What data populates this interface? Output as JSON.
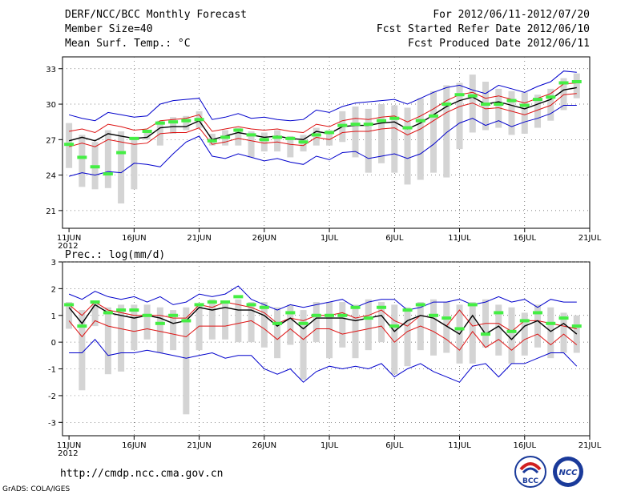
{
  "header": {
    "title": "DERF/NCC/BCC Monthly Forecast",
    "member_size": "Member Size=40",
    "variable_top": "Mean Surf. Temp.: °C",
    "period": "For 2012/06/11-2012/07/20",
    "start_date": "Fcst Started Refer Date 2012/06/10",
    "produced_date": "Fcst Produced Date 2012/06/11"
  },
  "footer": {
    "url": "http://cmdp.ncc.cma.gov.cn",
    "grads": "GrADS: COLA/IGES"
  },
  "logos": {
    "bcc": "BCC",
    "ncc": "NCC"
  },
  "colors": {
    "box": "#d4d4d4",
    "median": "#44ee44",
    "mean": "#000000",
    "pct": "#dd1111",
    "extreme": "#0000cc"
  },
  "chart_data": [
    {
      "type": "line",
      "title": "Mean Surf. Temp.: °C",
      "xlabel": "",
      "ylabel": "",
      "ylim": [
        19.5,
        34
      ],
      "yticks": [
        21,
        24,
        27,
        30,
        33
      ],
      "xlim": [
        0,
        40
      ],
      "x_ticks": [
        {
          "day": 0,
          "label": "11JUN"
        },
        {
          "day": 5,
          "label": "16JUN"
        },
        {
          "day": 10,
          "label": "21JUN"
        },
        {
          "day": 15,
          "label": "26JUN"
        },
        {
          "day": 20,
          "label": "1JUL"
        },
        {
          "day": 25,
          "label": "6JUL"
        },
        {
          "day": 30,
          "label": "11JUL"
        },
        {
          "day": 35,
          "label": "16JUL"
        },
        {
          "day": 40,
          "label": "21JUL"
        }
      ],
      "year_label": "2012",
      "x": [
        0,
        1,
        2,
        3,
        4,
        5,
        6,
        7,
        8,
        9,
        10,
        11,
        12,
        13,
        14,
        15,
        16,
        17,
        18,
        19,
        20,
        21,
        22,
        23,
        24,
        25,
        26,
        27,
        28,
        29,
        30,
        31,
        32,
        33,
        34,
        35,
        36,
        37,
        38,
        39
      ],
      "series": [
        {
          "name": "max",
          "color": "#0000cc",
          "values": [
            29.1,
            28.8,
            28.6,
            29.3,
            29.1,
            28.9,
            29.0,
            30.0,
            30.3,
            30.4,
            30.5,
            28.7,
            28.9,
            29.2,
            28.8,
            28.9,
            28.7,
            28.6,
            28.7,
            29.5,
            29.3,
            29.8,
            30.1,
            30.2,
            30.3,
            30.4,
            30.0,
            30.5,
            31.0,
            31.4,
            31.6,
            31.2,
            30.9,
            31.6,
            31.3,
            31.0,
            31.5,
            31.9,
            32.8,
            32.7
          ]
        },
        {
          "name": "upper",
          "color": "#dd1111",
          "values": [
            27.7,
            27.9,
            27.6,
            28.3,
            28.1,
            27.8,
            27.9,
            28.6,
            28.7,
            28.8,
            29.1,
            27.7,
            27.9,
            28.1,
            27.9,
            27.8,
            27.9,
            27.7,
            27.6,
            28.3,
            28.1,
            28.6,
            28.8,
            28.7,
            28.9,
            29.0,
            28.5,
            29.0,
            29.6,
            30.3,
            30.8,
            31.0,
            30.5,
            30.7,
            30.4,
            30.1,
            30.5,
            30.9,
            31.7,
            31.8
          ]
        },
        {
          "name": "mean",
          "color": "#000000",
          "values": [
            26.9,
            27.2,
            26.9,
            27.5,
            27.3,
            27.1,
            27.2,
            28.0,
            28.1,
            28.1,
            28.6,
            27.0,
            27.3,
            27.6,
            27.4,
            27.2,
            27.3,
            27.1,
            27.0,
            27.7,
            27.5,
            28.1,
            28.2,
            28.2,
            28.4,
            28.5,
            27.9,
            28.4,
            29.1,
            29.8,
            30.3,
            30.6,
            30.0,
            30.2,
            29.9,
            29.6,
            30.0,
            30.4,
            31.2,
            31.4
          ]
        },
        {
          "name": "lower",
          "color": "#dd1111",
          "values": [
            26.4,
            26.7,
            26.4,
            27.0,
            26.8,
            26.6,
            26.7,
            27.5,
            27.6,
            27.6,
            28.0,
            26.6,
            26.8,
            27.1,
            26.9,
            26.7,
            26.8,
            26.6,
            26.5,
            27.2,
            27.0,
            27.6,
            27.7,
            27.7,
            27.9,
            28.0,
            27.4,
            27.9,
            28.6,
            29.3,
            29.8,
            30.1,
            29.6,
            29.7,
            29.4,
            29.1,
            29.5,
            29.9,
            30.8,
            30.9
          ]
        },
        {
          "name": "min",
          "color": "#0000cc",
          "values": [
            23.9,
            24.2,
            24.0,
            24.3,
            24.2,
            25.0,
            24.9,
            24.7,
            25.8,
            26.8,
            27.3,
            25.6,
            25.4,
            25.8,
            25.5,
            25.2,
            25.4,
            25.1,
            24.9,
            25.6,
            25.3,
            25.9,
            26.0,
            25.4,
            25.6,
            25.8,
            25.4,
            25.8,
            26.6,
            27.6,
            28.4,
            28.8,
            28.2,
            28.6,
            28.1,
            28.5,
            28.8,
            29.2,
            29.9,
            29.9
          ]
        }
      ],
      "boxes": {
        "low": [
          24.6,
          23.0,
          22.8,
          22.9,
          21.6,
          22.8,
          27.0,
          26.5,
          27.5,
          27.8,
          28.0,
          26.5,
          26.5,
          26.5,
          25.5,
          26.0,
          26.0,
          25.5,
          26.0,
          26.5,
          26.5,
          26.8,
          25.5,
          24.2,
          25.0,
          24.2,
          23.2,
          23.6,
          24.2,
          23.8,
          26.2,
          27.6,
          27.8,
          28.0,
          27.4,
          27.5,
          28.0,
          28.6,
          29.5,
          30.5
        ],
        "high": [
          28.4,
          27.4,
          26.8,
          27.8,
          27.7,
          27.2,
          27.8,
          28.6,
          28.9,
          29.0,
          29.4,
          27.5,
          27.8,
          28.0,
          27.7,
          27.6,
          27.8,
          27.3,
          27.4,
          28.0,
          27.8,
          29.4,
          29.8,
          29.6,
          30.0,
          29.9,
          29.7,
          30.5,
          31.1,
          31.6,
          31.8,
          32.5,
          31.9,
          31.3,
          31.1,
          31.0,
          30.8,
          31.3,
          32.2,
          32.6
        ],
        "median": [
          26.6,
          25.5,
          24.7,
          24.1,
          25.9,
          27.1,
          27.7,
          28.4,
          28.5,
          28.6,
          28.7,
          26.9,
          27.2,
          27.8,
          27.4,
          27.0,
          27.2,
          27.1,
          26.8,
          27.4,
          27.6,
          28.2,
          28.3,
          28.3,
          28.6,
          28.8,
          28.0,
          28.6,
          29.0,
          30.0,
          30.8,
          30.7,
          30.0,
          30.0,
          30.3,
          29.9,
          30.4,
          30.6,
          31.8,
          31.9
        ]
      }
    },
    {
      "type": "line",
      "title": "Prec.: log(mm/d)",
      "xlabel": "",
      "ylabel": "",
      "ylim": [
        -3.5,
        3
      ],
      "yticks": [
        -3,
        -2,
        -1,
        0,
        1,
        2,
        3
      ],
      "xlim": [
        0,
        40
      ],
      "x_ticks": [
        {
          "day": 0,
          "label": "11JUN"
        },
        {
          "day": 5,
          "label": "16JUN"
        },
        {
          "day": 10,
          "label": "21JUN"
        },
        {
          "day": 15,
          "label": "26JUN"
        },
        {
          "day": 20,
          "label": "1JUL"
        },
        {
          "day": 25,
          "label": "6JUL"
        },
        {
          "day": 30,
          "label": "11JUL"
        },
        {
          "day": 35,
          "label": "16JUL"
        },
        {
          "day": 40,
          "label": "21JUL"
        }
      ],
      "year_label": "2012",
      "x": [
        0,
        1,
        2,
        3,
        4,
        5,
        6,
        7,
        8,
        9,
        10,
        11,
        12,
        13,
        14,
        15,
        16,
        17,
        18,
        19,
        20,
        21,
        22,
        23,
        24,
        25,
        26,
        27,
        28,
        29,
        30,
        31,
        32,
        33,
        34,
        35,
        36,
        37,
        38,
        39
      ],
      "series": [
        {
          "name": "max",
          "color": "#0000cc",
          "values": [
            1.8,
            1.6,
            1.9,
            1.7,
            1.6,
            1.7,
            1.5,
            1.7,
            1.4,
            1.5,
            1.8,
            1.7,
            1.8,
            2.1,
            1.6,
            1.4,
            1.2,
            1.4,
            1.3,
            1.4,
            1.5,
            1.6,
            1.3,
            1.5,
            1.6,
            1.6,
            1.2,
            1.3,
            1.5,
            1.5,
            1.6,
            1.4,
            1.5,
            1.7,
            1.5,
            1.6,
            1.3,
            1.6,
            1.5,
            1.5
          ]
        },
        {
          "name": "upper",
          "color": "#dd1111",
          "values": [
            1.4,
            1.0,
            1.5,
            1.2,
            1.1,
            1.0,
            1.0,
            1.0,
            0.9,
            0.9,
            1.4,
            1.3,
            1.5,
            1.4,
            1.3,
            1.1,
            0.7,
            0.9,
            0.8,
            1.0,
            1.0,
            1.1,
            0.9,
            1.0,
            1.2,
            0.8,
            0.6,
            1.0,
            0.9,
            0.6,
            1.2,
            0.6,
            0.7,
            0.7,
            0.4,
            0.8,
            0.8,
            0.7,
            0.6,
            0.5
          ]
        },
        {
          "name": "mean",
          "color": "#000000",
          "values": [
            1.3,
            0.7,
            1.4,
            1.1,
            1.0,
            0.9,
            1.0,
            0.9,
            0.7,
            0.8,
            1.3,
            1.2,
            1.3,
            1.2,
            1.2,
            1.0,
            0.6,
            0.9,
            0.5,
            0.9,
            0.9,
            0.9,
            0.8,
            0.9,
            1.0,
            0.4,
            0.8,
            1.0,
            0.9,
            0.6,
            0.3,
            1.0,
            0.3,
            0.6,
            0.1,
            0.6,
            0.8,
            0.4,
            0.7,
            0.3
          ]
        },
        {
          "name": "lower",
          "color": "#dd1111",
          "values": [
            0.8,
            0.2,
            0.8,
            0.6,
            0.5,
            0.4,
            0.5,
            0.4,
            0.3,
            0.2,
            0.6,
            0.6,
            0.6,
            0.7,
            0.8,
            0.5,
            0.1,
            0.5,
            0.1,
            0.5,
            0.5,
            0.3,
            0.4,
            0.5,
            0.6,
            0.0,
            0.4,
            0.6,
            0.4,
            0.1,
            -0.3,
            0.4,
            -0.2,
            0.1,
            -0.3,
            0.1,
            0.3,
            -0.1,
            0.3,
            -0.1
          ]
        },
        {
          "name": "min",
          "color": "#0000cc",
          "values": [
            -0.4,
            -0.4,
            0.1,
            -0.5,
            -0.4,
            -0.4,
            -0.3,
            -0.4,
            -0.5,
            -0.6,
            -0.5,
            -0.4,
            -0.6,
            -0.5,
            -0.5,
            -1.0,
            -1.2,
            -1.0,
            -1.5,
            -1.1,
            -0.9,
            -1.0,
            -0.9,
            -1.0,
            -0.8,
            -1.3,
            -1.0,
            -0.8,
            -1.1,
            -1.3,
            -1.5,
            -0.9,
            -0.8,
            -1.3,
            -0.8,
            -0.8,
            -0.6,
            -0.4,
            -0.4,
            -0.9
          ]
        }
      ],
      "boxes": {
        "low": [
          0.5,
          -1.8,
          0.6,
          -1.2,
          -1.1,
          -0.3,
          0.1,
          -0.4,
          -0.3,
          -2.7,
          -0.3,
          0.1,
          0.1,
          0.0,
          0.0,
          -0.2,
          -0.6,
          -0.1,
          -1.4,
          0.0,
          -0.6,
          -0.2,
          -0.6,
          -0.3,
          0.0,
          -1.2,
          -0.9,
          -0.3,
          -0.5,
          -0.4,
          -0.8,
          -0.8,
          -0.2,
          -0.5,
          -0.8,
          -0.5,
          -0.2,
          -0.6,
          -0.4,
          -0.4
        ],
        "high": [
          1.5,
          1.2,
          1.5,
          1.3,
          1.4,
          1.4,
          1.4,
          1.3,
          1.2,
          1.3,
          1.4,
          1.6,
          1.5,
          1.6,
          1.5,
          1.5,
          1.3,
          1.4,
          1.2,
          1.5,
          1.5,
          1.5,
          1.4,
          1.6,
          1.5,
          1.4,
          1.3,
          1.5,
          1.6,
          1.5,
          1.4,
          1.5,
          1.6,
          1.4,
          1.3,
          1.1,
          1.4,
          1.3,
          1.1,
          1.0
        ],
        "median": [
          1.4,
          0.6,
          1.5,
          1.1,
          1.2,
          1.2,
          1.0,
          0.7,
          1.0,
          0.8,
          1.4,
          1.5,
          1.5,
          1.7,
          1.4,
          1.3,
          0.7,
          1.1,
          0.7,
          1.0,
          1.0,
          1.0,
          1.3,
          0.9,
          1.3,
          0.6,
          1.2,
          1.4,
          1.0,
          0.9,
          0.5,
          1.4,
          0.3,
          1.1,
          0.4,
          0.8,
          1.1,
          0.7,
          0.9,
          0.6
        ]
      }
    }
  ]
}
